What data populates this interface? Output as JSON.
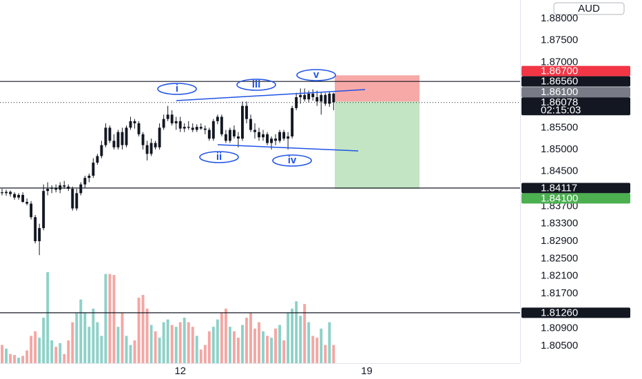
{
  "chart_data": {
    "type": "candlestick",
    "currency": "AUD",
    "up_color": "#131722",
    "down_color": "#131722",
    "volume_up_color": "#8dd1c8",
    "volume_down_color": "#f5a6a3",
    "candles": {
      "open": [
        1.8402,
        1.84,
        1.8403,
        1.8398,
        1.839,
        1.8396,
        1.838,
        1.8376,
        1.8345,
        1.829,
        1.832,
        1.8405,
        1.841,
        1.8412,
        1.8408,
        1.8418,
        1.8415,
        1.841,
        1.8365,
        1.84,
        1.842,
        1.8435,
        1.844,
        1.847,
        1.8485,
        1.851,
        1.855,
        1.852,
        1.8505,
        1.854,
        1.851,
        1.855,
        1.8565,
        1.856,
        1.8535,
        1.851,
        1.849,
        1.8515,
        1.8505,
        1.855,
        1.857,
        1.858,
        1.856,
        1.8565,
        1.8548,
        1.8552,
        1.855,
        1.8545,
        1.8552,
        1.8548,
        1.8545,
        1.8525,
        1.8565,
        1.8575,
        1.8535,
        1.852,
        1.8545,
        1.853,
        1.8525,
        1.86,
        1.857,
        1.8545,
        1.854,
        1.8528,
        1.8535,
        1.8515,
        1.8525,
        1.852,
        1.854,
        1.8525,
        1.853,
        1.8595,
        1.862,
        1.8625,
        1.8615,
        1.8628,
        1.862,
        1.861,
        1.8625,
        1.8605,
        1.8628
      ],
      "high": [
        1.841,
        1.8408,
        1.8406,
        1.8402,
        1.84,
        1.8402,
        1.8388,
        1.8382,
        1.835,
        1.833,
        1.842,
        1.8425,
        1.8418,
        1.842,
        1.8425,
        1.8428,
        1.842,
        1.8415,
        1.841,
        1.8425,
        1.844,
        1.8445,
        1.848,
        1.849,
        1.852,
        1.856,
        1.8555,
        1.8535,
        1.8545,
        1.855,
        1.8555,
        1.8575,
        1.857,
        1.8565,
        1.854,
        1.852,
        1.8525,
        1.852,
        1.856,
        1.858,
        1.86,
        1.859,
        1.8575,
        1.8575,
        1.856,
        1.8565,
        1.856,
        1.8558,
        1.856,
        1.8555,
        1.855,
        1.857,
        1.858,
        1.858,
        1.8545,
        1.855,
        1.8555,
        1.854,
        1.861,
        1.861,
        1.858,
        1.856,
        1.855,
        1.8545,
        1.854,
        1.853,
        1.8535,
        1.8545,
        1.8545,
        1.854,
        1.86,
        1.863,
        1.864,
        1.864,
        1.8635,
        1.8638,
        1.8635,
        1.863,
        1.863,
        1.8632,
        1.863
      ],
      "low": [
        1.8395,
        1.8394,
        1.8392,
        1.8385,
        1.8385,
        1.8378,
        1.8372,
        1.834,
        1.8285,
        1.8258,
        1.8315,
        1.8395,
        1.84,
        1.8402,
        1.84,
        1.841,
        1.8405,
        1.836,
        1.836,
        1.8395,
        1.8412,
        1.8425,
        1.8435,
        1.8465,
        1.848,
        1.8505,
        1.8515,
        1.85,
        1.85,
        1.85,
        1.8505,
        1.8545,
        1.8548,
        1.853,
        1.85,
        1.8475,
        1.8485,
        1.85,
        1.85,
        1.8545,
        1.8565,
        1.8555,
        1.8545,
        1.854,
        1.854,
        1.8545,
        1.854,
        1.854,
        1.8545,
        1.8535,
        1.852,
        1.852,
        1.8558,
        1.853,
        1.8515,
        1.8515,
        1.8525,
        1.8505,
        1.852,
        1.856,
        1.854,
        1.8525,
        1.852,
        1.852,
        1.851,
        1.85,
        1.851,
        1.8515,
        1.852,
        1.85,
        1.8525,
        1.859,
        1.8605,
        1.861,
        1.8608,
        1.8612,
        1.86,
        1.858,
        1.86,
        1.8598,
        1.859
      ],
      "close": [
        1.84,
        1.8403,
        1.8398,
        1.839,
        1.8396,
        1.838,
        1.8376,
        1.8345,
        1.829,
        1.832,
        1.8405,
        1.841,
        1.8412,
        1.8408,
        1.8418,
        1.8415,
        1.841,
        1.8365,
        1.84,
        1.842,
        1.8435,
        1.844,
        1.847,
        1.8485,
        1.851,
        1.855,
        1.852,
        1.8505,
        1.854,
        1.851,
        1.855,
        1.8565,
        1.856,
        1.8535,
        1.851,
        1.849,
        1.8515,
        1.8505,
        1.855,
        1.857,
        1.858,
        1.856,
        1.8565,
        1.8548,
        1.8552,
        1.855,
        1.8545,
        1.8552,
        1.8548,
        1.8545,
        1.8525,
        1.8565,
        1.8575,
        1.8535,
        1.852,
        1.8545,
        1.853,
        1.8525,
        1.86,
        1.857,
        1.8545,
        1.854,
        1.8528,
        1.8535,
        1.8515,
        1.8525,
        1.852,
        1.854,
        1.8525,
        1.853,
        1.8595,
        1.862,
        1.8625,
        1.8615,
        1.8628,
        1.862,
        1.861,
        1.8625,
        1.8605,
        1.8628,
        1.8608
      ],
      "volume": [
        20,
        16,
        10,
        9,
        6,
        8,
        14,
        30,
        35,
        28,
        50,
        100,
        25,
        18,
        22,
        10,
        25,
        45,
        55,
        70,
        55,
        40,
        60,
        45,
        30,
        98,
        98,
        97,
        40,
        55,
        30,
        20,
        25,
        72,
        75,
        60,
        42,
        35,
        28,
        45,
        48,
        42,
        40,
        45,
        50,
        45,
        40,
        30,
        15,
        20,
        35,
        40,
        48,
        55,
        60,
        40,
        35,
        28,
        42,
        50,
        55,
        38,
        45,
        35,
        30,
        28,
        38,
        42,
        25,
        55,
        60,
        68,
        52,
        65,
        45,
        30,
        28,
        38,
        20,
        45,
        20
      ]
    },
    "xlim": [
      -0.5,
      125
    ],
    "xticks": [
      {
        "value": 43,
        "label": "12"
      },
      {
        "value": 88,
        "label": "19"
      }
    ],
    "ylim": [
      1.80105,
      1.88426
    ],
    "yticks": [
      {
        "value": 1.88,
        "label": "1.88000"
      },
      {
        "value": 1.875,
        "label": "1.87500"
      },
      {
        "value": 1.87,
        "label": "1.87000"
      },
      {
        "value": 1.855,
        "label": "1.85500"
      },
      {
        "value": 1.85,
        "label": "1.85000"
      },
      {
        "value": 1.845,
        "label": "1.84500"
      },
      {
        "value": 1.837,
        "label": "1.83700"
      },
      {
        "value": 1.833,
        "label": "1.83300"
      },
      {
        "value": 1.829,
        "label": "1.82900"
      },
      {
        "value": 1.825,
        "label": "1.82500"
      },
      {
        "value": 1.821,
        "label": "1.82100"
      },
      {
        "value": 1.817,
        "label": "1.81700"
      },
      {
        "value": 1.809,
        "label": "1.80900"
      },
      {
        "value": 1.805,
        "label": "1.80500"
      }
    ],
    "price_labels": [
      {
        "value": 1.867,
        "label": "1.86700",
        "color": "#f23645"
      },
      {
        "value": 1.8656,
        "label": "1.86560",
        "color": "#131722",
        "line": true
      },
      {
        "value": 1.861,
        "label": "1.86100",
        "color": "#787b86"
      },
      {
        "value": 1.86078,
        "label": "1.86078",
        "sublabel": "02:15:03",
        "color": "#131722",
        "current": true
      },
      {
        "value": 1.84117,
        "label": "1.84117",
        "color": "#131722",
        "line": true
      },
      {
        "value": 1.841,
        "label": "1.84100",
        "color": "#4caf50"
      },
      {
        "value": 1.8126,
        "label": "1.81260",
        "color": "#131722",
        "line": true
      }
    ],
    "position": {
      "stop": 1.867,
      "entry": 1.861,
      "target": 1.841,
      "stop_color": "#f7a9a7",
      "target_color": "#c3e5c3"
    },
    "wave_labels": [
      "i",
      "ii",
      "iii",
      "iv",
      "v"
    ]
  }
}
